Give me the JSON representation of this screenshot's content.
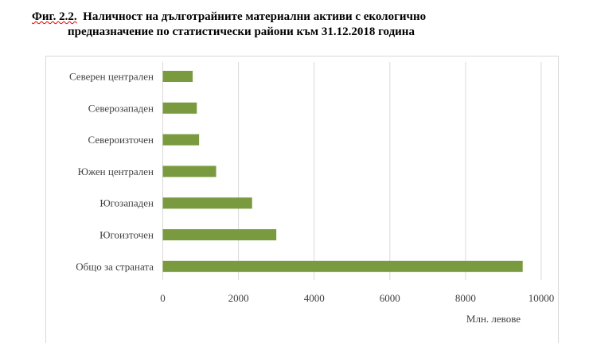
{
  "title": {
    "prefix": "Фиг. 2.2.",
    "line1": "Наличност на дълготрайните материални активи с екологично",
    "line2": "предназначение по статистически райони към 31.12.2018 година"
  },
  "chart_data": {
    "type": "bar",
    "orientation": "horizontal",
    "title": "Фиг. 2.2. Наличност на дълготрайните материални активи с екологично предназначение по статистически райони към 31.12.2018 година",
    "categories": [
      "Северен централен",
      "Северозападен",
      "Североизточен",
      "Южен централен",
      "Югозападен",
      "Югоизточен",
      "Общо за страната"
    ],
    "values": [
      790,
      900,
      960,
      1410,
      2360,
      3000,
      9510
    ],
    "xlabel": "Млн. левове",
    "ylabel": "",
    "xlim": [
      0,
      10000
    ],
    "xticks": [
      "0",
      "2000",
      "4000",
      "6000",
      "8000",
      "10000"
    ],
    "grid": true,
    "bar_color": "#7a9a40"
  }
}
